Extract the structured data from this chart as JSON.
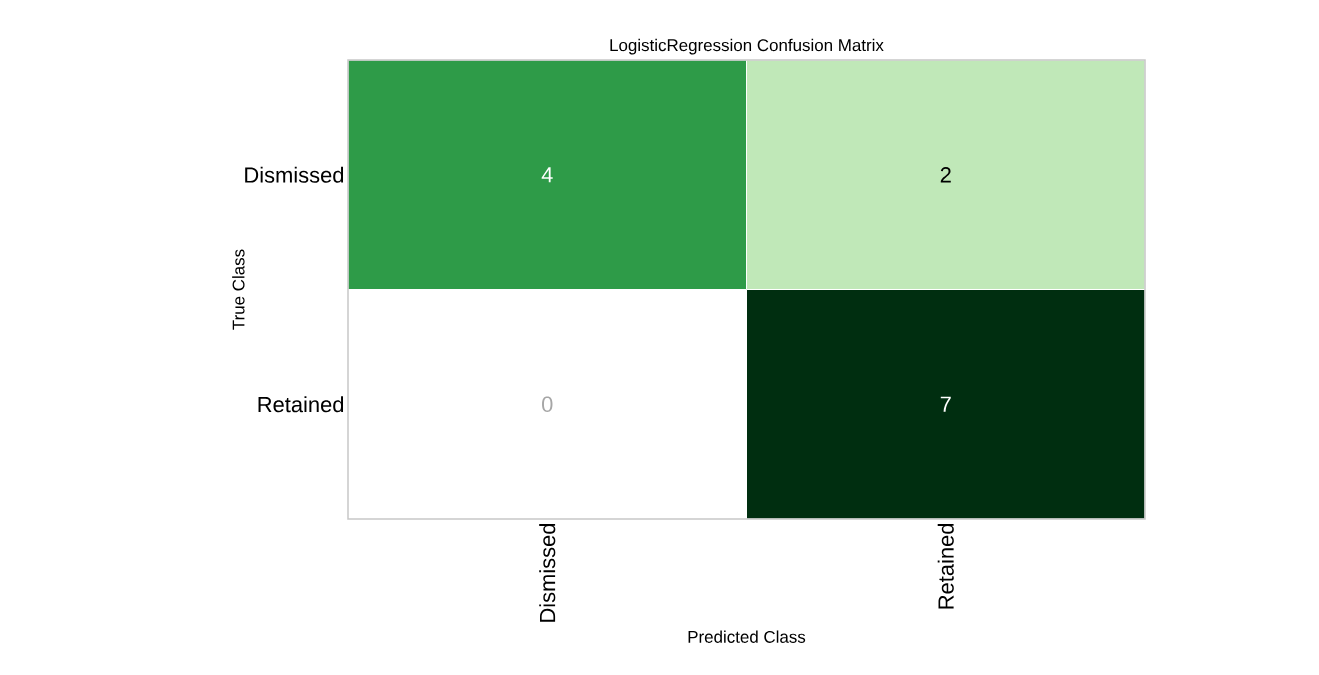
{
  "chart_data": {
    "type": "heatmap",
    "title": "LogisticRegression Confusion Matrix",
    "xlabel": "Predicted Class",
    "ylabel": "True Class",
    "categories": [
      "Dismissed",
      "Retained"
    ],
    "y_categories": [
      "Dismissed",
      "Retained"
    ],
    "cells": [
      [
        4,
        2
      ],
      [
        0,
        7
      ]
    ],
    "colors": [
      [
        "#2e9b48",
        "#c0e8b8"
      ],
      [
        "#ffffff",
        "#002e10"
      ]
    ],
    "data_labels": true
  }
}
